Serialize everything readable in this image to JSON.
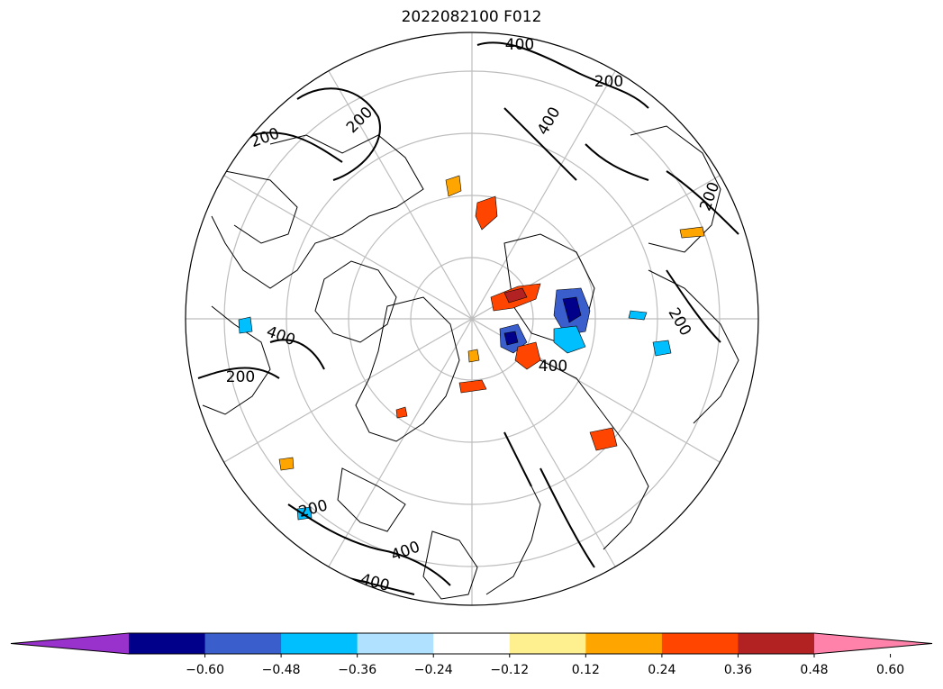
{
  "title": "2022082100 F012",
  "contour_labels": [
    "400",
    "400",
    "200",
    "200",
    "200",
    "400",
    "200",
    "200",
    "200",
    "400",
    "400",
    "400",
    "200"
  ],
  "colorbar": {
    "ticks": [
      "−0.60",
      "−0.48",
      "−0.36",
      "−0.24",
      "−0.12",
      "0.12",
      "0.24",
      "0.36",
      "0.48",
      "0.60"
    ],
    "colors": [
      "#9932cc",
      "#00008b",
      "#3a5fcd",
      "#00bfff",
      "#b0e2ff",
      "#ffffff",
      "#fff08f",
      "#ffa500",
      "#ff4500",
      "#b22222",
      "#ff82ab"
    ]
  }
}
